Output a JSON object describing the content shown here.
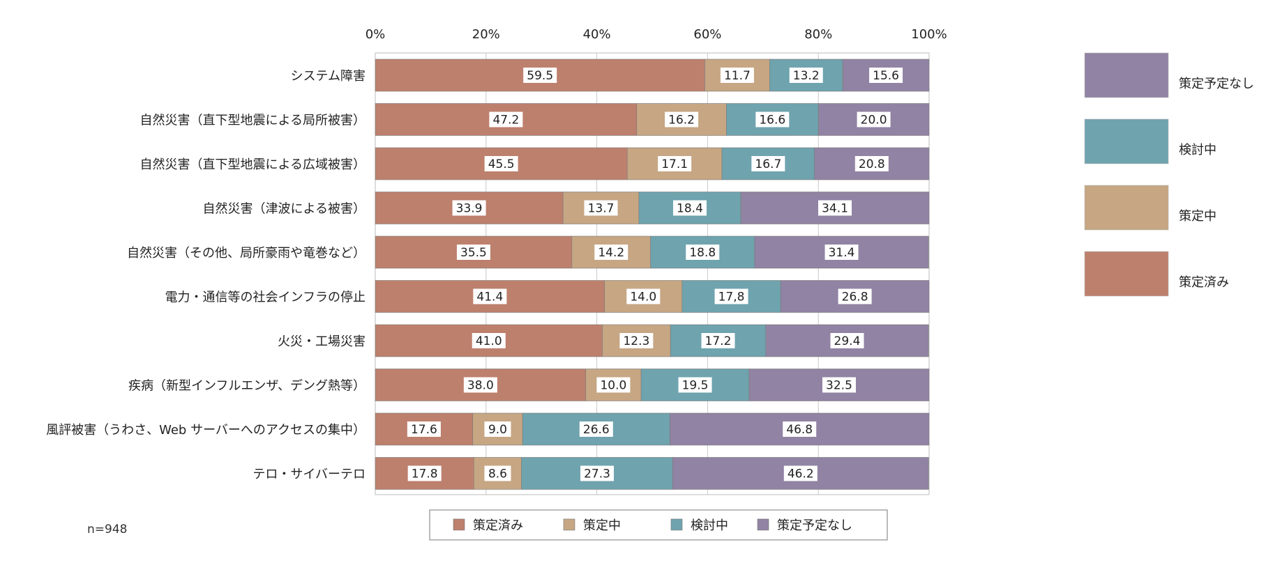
{
  "note": "n=948",
  "chart_data": {
    "type": "bar",
    "orientation": "horizontal",
    "stacked": true,
    "xlim": [
      0,
      100
    ],
    "x_ticks": [
      "0%",
      "20%",
      "40%",
      "60%",
      "80%",
      "100%"
    ],
    "categories": [
      "システム障害",
      "自然災害（直下型地震による局所被害）",
      "自然災害（直下型地震による広域被害）",
      "自然災害（津波による被害）",
      "自然災害（その他、局所豪雨や竜巻など）",
      "電力・通信等の社会インフラの停止",
      "火災・工場災害",
      "疾病（新型インフルエンザ、デング熱等）",
      "風評被害（うわさ、Web サーバーへのアクセスの集中）",
      "テロ・サイバーテロ"
    ],
    "series": [
      {
        "name": "策定済み",
        "color": "#bd806d",
        "values": [
          59.5,
          47.2,
          45.5,
          33.9,
          35.5,
          41.4,
          41.0,
          38.0,
          17.6,
          17.8
        ],
        "labels": [
          "59.5",
          "47.2",
          "45.5",
          "33.9",
          "35.5",
          "41.4",
          "41.0",
          "38.0",
          "17.6",
          "17.8"
        ]
      },
      {
        "name": "策定中",
        "color": "#c6a683",
        "values": [
          11.7,
          16.2,
          17.1,
          13.7,
          14.2,
          14.0,
          12.3,
          10.0,
          9.0,
          8.6
        ],
        "labels": [
          "11.7",
          "16.2",
          "17.1",
          "13.7",
          "14.2",
          "14.0",
          "12.3",
          "10.0",
          "9.0",
          "8.6"
        ]
      },
      {
        "name": "検討中",
        "color": "#6fa3ae",
        "values": [
          13.2,
          16.6,
          16.7,
          18.4,
          18.8,
          17.8,
          17.2,
          19.5,
          26.6,
          27.3
        ],
        "labels": [
          "13.2",
          "16.6",
          "16.7",
          "18.4",
          "18.8",
          "17,8",
          "17.2",
          "19.5",
          "26.6",
          "27.3"
        ]
      },
      {
        "name": "策定予定なし",
        "color": "#9183a3",
        "values": [
          15.6,
          20.0,
          20.8,
          34.1,
          31.4,
          26.8,
          29.4,
          32.5,
          46.8,
          46.2
        ],
        "labels": [
          "15.6",
          "20.0",
          "20.8",
          "34.1",
          "31.4",
          "26.8",
          "29.4",
          "32.5",
          "46.8",
          "46.2"
        ]
      }
    ],
    "legend_bottom": [
      "策定済み",
      "策定中",
      "検討中",
      "策定予定なし"
    ],
    "legend_right": [
      "策定予定なし",
      "検討中",
      "策定中",
      "策定済み"
    ],
    "grid": true
  }
}
